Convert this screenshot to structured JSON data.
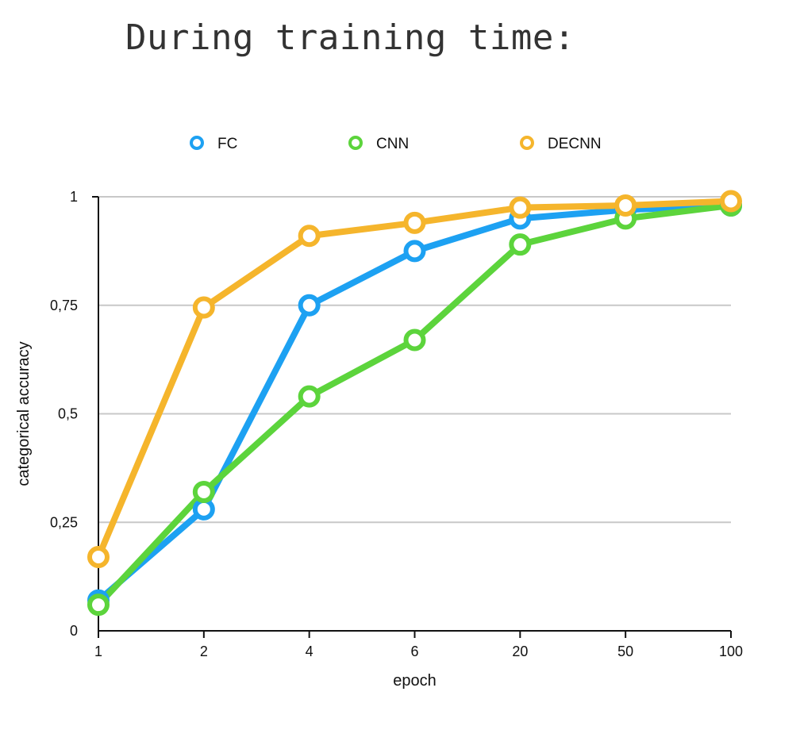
{
  "heading": "During training time:",
  "colors": {
    "FC": "#1da1f2",
    "CNN": "#5cd43c",
    "DECNN": "#f5b52c",
    "grid": "#c8c8c8",
    "axis": "#111111"
  },
  "chart_data": {
    "type": "line",
    "title": "",
    "xlabel": "epoch",
    "ylabel": "categorical accuracy",
    "categories": [
      "1",
      "2",
      "4",
      "6",
      "20",
      "50",
      "100"
    ],
    "ylim": [
      0,
      1
    ],
    "yticks": [
      0,
      0.25,
      0.5,
      0.75,
      1
    ],
    "ytick_labels": [
      "0",
      "0,25",
      "0,5",
      "0,75",
      "1"
    ],
    "grid": true,
    "legend_position": "top",
    "series": [
      {
        "name": "FC",
        "values": [
          0.07,
          0.28,
          0.75,
          0.875,
          0.95,
          0.97,
          0.98
        ]
      },
      {
        "name": "CNN",
        "values": [
          0.06,
          0.32,
          0.54,
          0.67,
          0.89,
          0.95,
          0.98
        ]
      },
      {
        "name": "DECNN",
        "values": [
          0.17,
          0.745,
          0.91,
          0.94,
          0.975,
          0.98,
          0.99
        ]
      }
    ]
  }
}
